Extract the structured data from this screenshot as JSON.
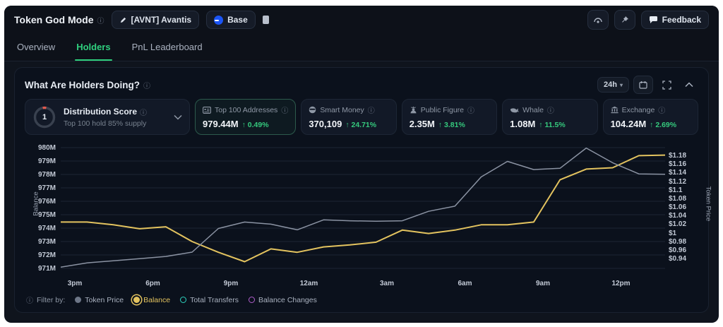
{
  "header": {
    "title": "Token God Mode",
    "token_button": {
      "label": "[AVNT] Avantis"
    },
    "chain_button": {
      "label": "Base"
    },
    "feedback_button": {
      "label": "Feedback"
    }
  },
  "tabs": [
    {
      "label": "Overview",
      "active": false
    },
    {
      "label": "Holders",
      "active": true
    },
    {
      "label": "PnL Leaderboard",
      "active": false
    }
  ],
  "panel": {
    "title": "What Are Holders Doing?",
    "timeframe": "24h",
    "distribution": {
      "score": "1",
      "title": "Distribution Score",
      "subtitle": "Top 100 hold 85% supply"
    },
    "cards": [
      {
        "icon": "id-card-icon",
        "label": "Top 100 Addresses",
        "value": "979.44M",
        "change": "0.49%",
        "selected": true
      },
      {
        "icon": "ninja-icon",
        "label": "Smart Money",
        "value": "370,109",
        "change": "24.71%",
        "selected": false
      },
      {
        "icon": "person-icon",
        "label": "Public Figure",
        "value": "2.35M",
        "change": "3.81%",
        "selected": false
      },
      {
        "icon": "whale-icon",
        "label": "Whale",
        "value": "1.08M",
        "change": "11.5%",
        "selected": false
      },
      {
        "icon": "bank-icon",
        "label": "Exchange",
        "value": "104.24M",
        "change": "2.69%",
        "selected": false
      }
    ],
    "filter": {
      "label": "Filter by:",
      "options": [
        {
          "label": "Token Price",
          "color": "#6d7687",
          "style": "filled",
          "selected": false
        },
        {
          "label": "Balance",
          "color": "#e3c35f",
          "style": "filled-ring",
          "selected": true
        },
        {
          "label": "Total Transfers",
          "color": "#2dd4bf",
          "style": "ring",
          "selected": false
        },
        {
          "label": "Balance Changes",
          "color": "#b05ecb",
          "style": "ring",
          "selected": false
        }
      ]
    }
  },
  "chart_data": {
    "type": "line",
    "x_tick_labels": [
      "3pm",
      "6pm",
      "9pm",
      "12am",
      "3am",
      "6am",
      "9am",
      "12pm"
    ],
    "left_axis": {
      "label": "Balance",
      "min": 971,
      "max": 980,
      "unit": "M",
      "ticks": [
        "980M",
        "979M",
        "978M",
        "977M",
        "976M",
        "975M",
        "974M",
        "973M",
        "972M",
        "971M"
      ]
    },
    "right_axis": {
      "label": "Token Price",
      "min": 0.94,
      "max": 1.18,
      "ticks": [
        "$1.18",
        "$1.16",
        "$1.14",
        "$1.12",
        "$1.1",
        "$1.08",
        "$1.06",
        "$1.04",
        "$1.02",
        "$1",
        "$0.98",
        "$0.96",
        "$0.94"
      ]
    },
    "grid": true,
    "series": [
      {
        "name": "Balance",
        "axis": "left",
        "color": "#e3c35f",
        "width": 2,
        "values": [
          974.45,
          974.45,
          974.25,
          973.95,
          974.1,
          973.0,
          972.2,
          971.5,
          972.45,
          972.2,
          972.6,
          972.75,
          972.95,
          973.85,
          973.6,
          973.85,
          974.25,
          974.25,
          974.45,
          977.6,
          978.4,
          978.5,
          979.4,
          979.44
        ]
      },
      {
        "name": "Token Price",
        "axis": "right",
        "color": "#8b93a3",
        "width": 1.5,
        "values": [
          0.92,
          0.93,
          0.935,
          0.94,
          0.945,
          0.955,
          1.01,
          1.025,
          1.02,
          1.007,
          1.03,
          1.028,
          1.027,
          1.028,
          1.05,
          1.062,
          1.13,
          1.166,
          1.147,
          1.15,
          1.197,
          1.163,
          1.137,
          1.136
        ]
      }
    ]
  }
}
